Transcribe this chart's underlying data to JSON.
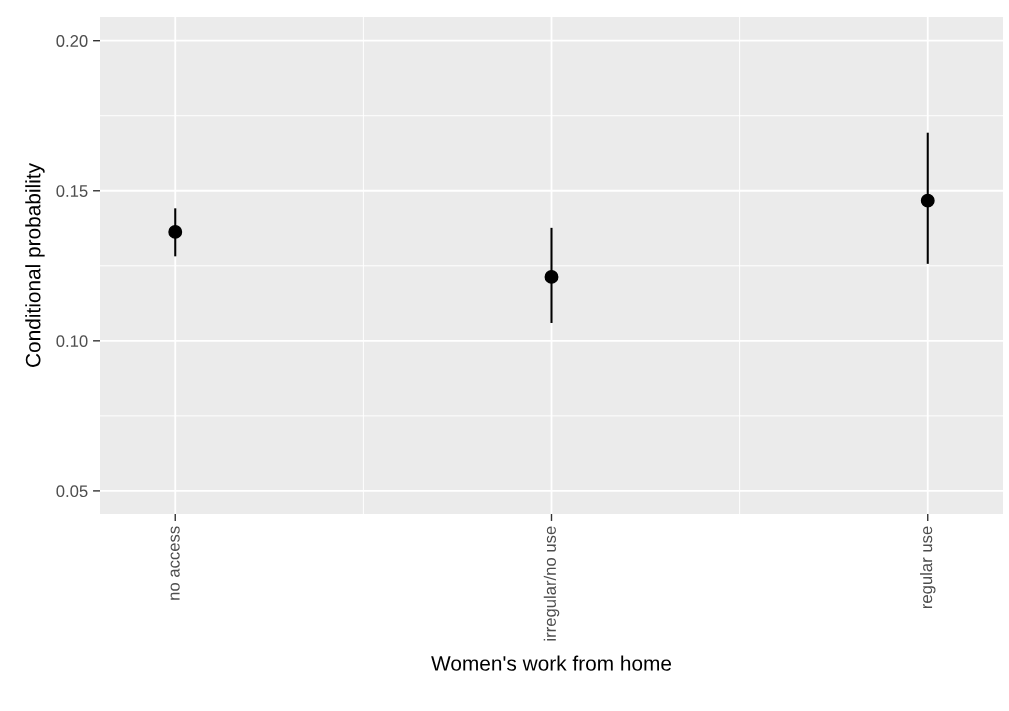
{
  "chart_data": {
    "type": "scatter",
    "xlabel": "Women's work from home",
    "ylabel": "Conditional probability",
    "categories": [
      "no access",
      "irregular/no use",
      "regular use"
    ],
    "series": [
      {
        "color": "#000000",
        "values": [
          0.1363,
          0.1213,
          0.1467
        ],
        "errors": [
          [
            0.1285,
            0.1438
          ],
          [
            0.1063,
            0.1373
          ],
          [
            0.126,
            0.169
          ]
        ]
      }
    ],
    "ylim": [
      0.0423,
      0.2079
    ],
    "yticks": [
      {
        "value": 0.05,
        "label": "0.05"
      },
      {
        "value": 0.1,
        "label": "0.10"
      },
      {
        "value": 0.15,
        "label": "0.15"
      },
      {
        "value": 0.2,
        "label": "0.20"
      }
    ],
    "grid": true,
    "marker": "circle"
  }
}
